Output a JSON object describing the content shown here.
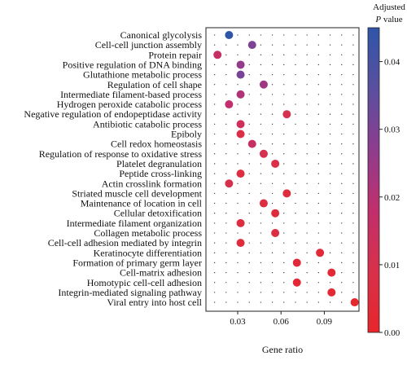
{
  "chart_data": {
    "type": "scatter",
    "title": "",
    "xlabel": "Gene ratio",
    "ylabel": "",
    "xlim": [
      0.008,
      0.114
    ],
    "xticks": [
      0.03,
      0.06,
      0.09
    ],
    "xtick_labels": [
      "0.03",
      "0.06",
      "0.09"
    ],
    "grid": "dotted",
    "legend": {
      "title_line1": "Adjusted",
      "title_line2_italic": "P",
      "title_line2_rest": " value",
      "placement": "right",
      "range": [
        0.0,
        0.045
      ],
      "ticks": [
        0.0,
        0.01,
        0.02,
        0.03,
        0.04
      ],
      "tick_labels": [
        "0.00",
        "0.01",
        "0.02",
        "0.03",
        "0.04"
      ],
      "colors_low_to_high": [
        "#e8262b",
        "#d8304a",
        "#c12f6c",
        "#8e3c8e",
        "#5a4f9f",
        "#2f55a8"
      ]
    },
    "points": [
      {
        "term": "Canonical glycolysis",
        "gene_ratio": 0.024,
        "adj_p": 0.045
      },
      {
        "term": "Cell-cell junction assembly",
        "gene_ratio": 0.04,
        "adj_p": 0.03
      },
      {
        "term": "Protein repair",
        "gene_ratio": 0.016,
        "adj_p": 0.016
      },
      {
        "term": "Positive regulation of DNA binding",
        "gene_ratio": 0.032,
        "adj_p": 0.026
      },
      {
        "term": "Glutathione metabolic process",
        "gene_ratio": 0.032,
        "adj_p": 0.031
      },
      {
        "term": "Regulation of cell shape",
        "gene_ratio": 0.048,
        "adj_p": 0.024
      },
      {
        "term": "Intermediate filament-based process",
        "gene_ratio": 0.032,
        "adj_p": 0.021
      },
      {
        "term": "Hydrogen peroxide catabolic process",
        "gene_ratio": 0.024,
        "adj_p": 0.018
      },
      {
        "term": "Negative regulation of endopeptidase activity",
        "gene_ratio": 0.064,
        "adj_p": 0.01
      },
      {
        "term": "Antibiotic catabolic process",
        "gene_ratio": 0.032,
        "adj_p": 0.013
      },
      {
        "term": "Epiboly",
        "gene_ratio": 0.032,
        "adj_p": 0.008
      },
      {
        "term": "Cell redox homeostasis",
        "gene_ratio": 0.04,
        "adj_p": 0.016
      },
      {
        "term": "Regulation of response to oxidative stress",
        "gene_ratio": 0.048,
        "adj_p": 0.01
      },
      {
        "term": "Platelet degranulation",
        "gene_ratio": 0.056,
        "adj_p": 0.008
      },
      {
        "term": "Peptide cross-linking",
        "gene_ratio": 0.032,
        "adj_p": 0.006
      },
      {
        "term": "Actin crosslink formation",
        "gene_ratio": 0.024,
        "adj_p": 0.01
      },
      {
        "term": "Striated muscle cell development",
        "gene_ratio": 0.064,
        "adj_p": 0.005
      },
      {
        "term": "Maintenance of location in cell",
        "gene_ratio": 0.048,
        "adj_p": 0.006
      },
      {
        "term": "Cellular detoxification",
        "gene_ratio": 0.056,
        "adj_p": 0.005
      },
      {
        "term": "Intermediate filament organization",
        "gene_ratio": 0.032,
        "adj_p": 0.006
      },
      {
        "term": "Collagen metabolic process",
        "gene_ratio": 0.056,
        "adj_p": 0.007
      },
      {
        "term": "Cell-cell adhesion mediated by integrin",
        "gene_ratio": 0.032,
        "adj_p": 0.005
      },
      {
        "term": "Keratinocyte differentiation",
        "gene_ratio": 0.087,
        "adj_p": 0.004
      },
      {
        "term": "Formation of primary germ layer",
        "gene_ratio": 0.071,
        "adj_p": 0.004
      },
      {
        "term": "Cell-matrix adhesion",
        "gene_ratio": 0.095,
        "adj_p": 0.003
      },
      {
        "term": "Homotypic cell-cell adhesion",
        "gene_ratio": 0.071,
        "adj_p": 0.003
      },
      {
        "term": "Integrin-mediated signaling pathway",
        "gene_ratio": 0.095,
        "adj_p": 0.003
      },
      {
        "term": "Viral entry into host cell",
        "gene_ratio": 0.111,
        "adj_p": 0.001
      }
    ]
  }
}
